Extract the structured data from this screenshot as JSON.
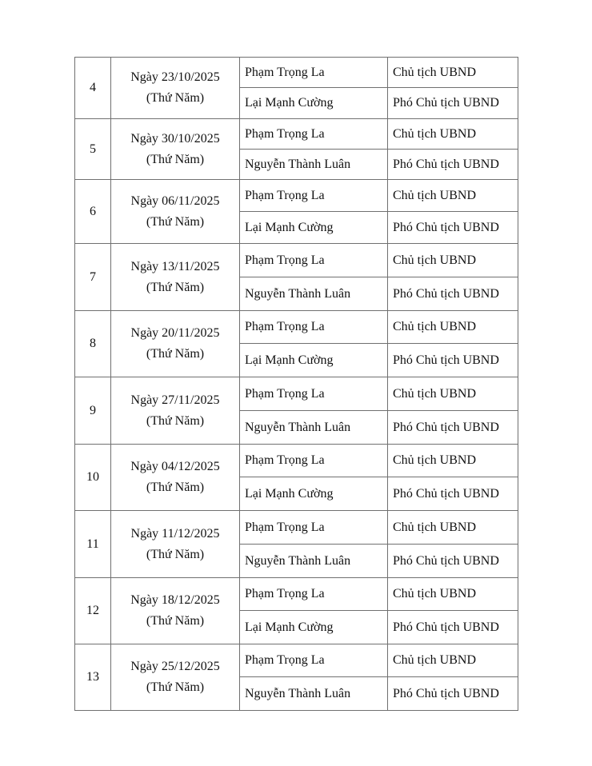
{
  "rows": [
    {
      "stt": "4",
      "date": "Ngày 23/10/2025",
      "weekday": "(Thứ Năm)",
      "people": [
        {
          "name": "Phạm Trọng La",
          "role": "Chủ tịch UBND"
        },
        {
          "name": "Lại Mạnh Cường",
          "role": "Phó Chủ tịch UBND"
        }
      ]
    },
    {
      "stt": "5",
      "date": "Ngày 30/10/2025",
      "weekday": "(Thứ Năm)",
      "people": [
        {
          "name": "Phạm Trọng La",
          "role": "Chủ tịch UBND"
        },
        {
          "name": "Nguyễn Thành Luân",
          "role": "Phó Chủ tịch UBND"
        }
      ]
    },
    {
      "stt": "6",
      "date": "Ngày 06/11/2025",
      "weekday": "(Thứ Năm)",
      "people": [
        {
          "name": "Phạm Trọng La",
          "role": "Chủ tịch UBND"
        },
        {
          "name": "Lại Mạnh Cường",
          "role": "Phó Chủ tịch UBND"
        }
      ]
    },
    {
      "stt": "7",
      "date": "Ngày 13/11/2025",
      "weekday": "(Thứ Năm)",
      "people": [
        {
          "name": "Phạm Trọng La",
          "role": "Chủ tịch UBND"
        },
        {
          "name": "Nguyễn Thành Luân",
          "role": "Phó Chủ tịch UBND"
        }
      ]
    },
    {
      "stt": "8",
      "date": "Ngày 20/11/2025",
      "weekday": "(Thứ Năm)",
      "people": [
        {
          "name": "Phạm Trọng La",
          "role": "Chủ tịch UBND"
        },
        {
          "name": "Lại Mạnh Cường",
          "role": "Phó Chủ tịch UBND"
        }
      ]
    },
    {
      "stt": "9",
      "date": "Ngày 27/11/2025",
      "weekday": "(Thứ Năm)",
      "people": [
        {
          "name": "Phạm Trọng La",
          "role": "Chủ tịch UBND"
        },
        {
          "name": "Nguyễn Thành Luân",
          "role": "Phó Chủ tịch UBND"
        }
      ]
    },
    {
      "stt": "10",
      "date": "Ngày 04/12/2025",
      "weekday": "(Thứ Năm)",
      "people": [
        {
          "name": "Phạm Trọng La",
          "role": "Chủ tịch UBND"
        },
        {
          "name": "Lại Mạnh Cường",
          "role": "Phó Chủ tịch UBND"
        }
      ]
    },
    {
      "stt": "11",
      "date": "Ngày 11/12/2025",
      "weekday": "(Thứ Năm)",
      "people": [
        {
          "name": "Phạm Trọng La",
          "role": "Chủ tịch UBND"
        },
        {
          "name": "Nguyễn Thành Luân",
          "role": "Phó Chủ tịch UBND"
        }
      ]
    },
    {
      "stt": "12",
      "date": "Ngày 18/12/2025",
      "weekday": "(Thứ Năm)",
      "people": [
        {
          "name": "Phạm Trọng La",
          "role": "Chủ tịch UBND"
        },
        {
          "name": "Lại Mạnh Cường",
          "role": "Phó Chủ tịch UBND"
        }
      ]
    },
    {
      "stt": "13",
      "date": "Ngày 25/12/2025",
      "weekday": "(Thứ Năm)",
      "people": [
        {
          "name": "Phạm Trọng La",
          "role": "Chủ tịch UBND"
        },
        {
          "name": "Nguyễn Thành Luân",
          "role": "Phó Chủ tịch UBND"
        }
      ]
    }
  ]
}
